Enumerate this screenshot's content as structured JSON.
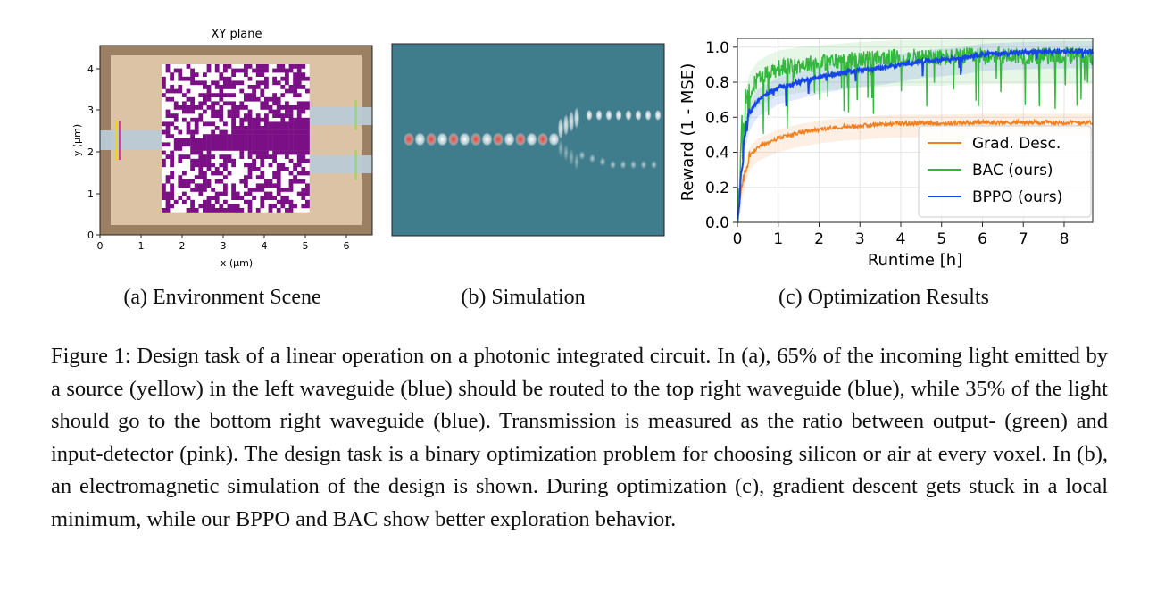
{
  "panel_a": {
    "title": "XY plane",
    "xlabel": "x (μm)",
    "ylabel": "y (μm)",
    "xticks": [
      "0",
      "1",
      "2",
      "3",
      "4",
      "5",
      "6"
    ],
    "yticks": [
      "0",
      "1",
      "2",
      "3",
      "4"
    ],
    "caption": "(a) Environment Scene",
    "colors": {
      "pml": "#9c8063",
      "cladding": "#ddc3a6",
      "waveguide": "#b9cad6",
      "design": "#7b0f86",
      "source": "#f3d21d",
      "input_detector": "#d53aa8",
      "output_detector": "#8bd84a"
    }
  },
  "panel_b": {
    "caption": "(b) Simulation",
    "colors": {
      "background": "#3f7c8c",
      "field_positive": "#d94a45",
      "field_negative": "#f4f4f4"
    }
  },
  "panel_c": {
    "caption": "(c) Optimization Results",
    "chart_data": {
      "type": "line",
      "xlabel": "Runtime [h]",
      "ylabel": "Reward (1 - MSE)",
      "xlim": [
        0,
        8.7
      ],
      "ylim": [
        0,
        1.05
      ],
      "xticks": [
        "0",
        "1",
        "2",
        "3",
        "4",
        "5",
        "6",
        "7",
        "8"
      ],
      "yticks": [
        "0.0",
        "0.2",
        "0.4",
        "0.6",
        "0.8",
        "1.0"
      ],
      "grid": true,
      "legend_position": "lower-right",
      "series": [
        {
          "name": "Grad. Desc.",
          "color": "#f07f1e",
          "x": [
            0,
            0.1,
            0.2,
            0.3,
            0.5,
            0.8,
            1,
            1.5,
            2,
            2.5,
            3,
            3.5,
            4,
            5,
            6,
            7,
            8,
            8.6
          ],
          "y": [
            0,
            0.18,
            0.3,
            0.38,
            0.43,
            0.46,
            0.48,
            0.51,
            0.53,
            0.545,
            0.55,
            0.56,
            0.565,
            0.565,
            0.57,
            0.57,
            0.57,
            0.57
          ]
        },
        {
          "name": "BAC (ours)",
          "color": "#33b83d",
          "x": [
            0,
            0.05,
            0.1,
            0.2,
            0.3,
            0.5,
            0.8,
            1,
            1.5,
            2,
            3,
            4,
            5,
            6,
            7,
            8,
            8.6
          ],
          "y": [
            0,
            0.2,
            0.45,
            0.65,
            0.75,
            0.82,
            0.86,
            0.88,
            0.9,
            0.91,
            0.93,
            0.94,
            0.94,
            0.95,
            0.95,
            0.95,
            0.95
          ]
        },
        {
          "name": "BPPO (ours)",
          "color": "#1646e6",
          "x": [
            0,
            0.05,
            0.1,
            0.2,
            0.3,
            0.5,
            0.8,
            1,
            1.5,
            2,
            2.5,
            3,
            3.5,
            4,
            4.5,
            5,
            5.5,
            6,
            7,
            8,
            8.6
          ],
          "y": [
            0,
            0.12,
            0.3,
            0.52,
            0.62,
            0.7,
            0.74,
            0.77,
            0.8,
            0.83,
            0.85,
            0.87,
            0.88,
            0.9,
            0.92,
            0.93,
            0.94,
            0.96,
            0.97,
            0.975,
            0.975
          ]
        }
      ]
    }
  },
  "caption": {
    "text": "Figure 1: Design task of a linear operation on a photonic integrated circuit. In (a), 65% of the incoming light emitted by a source (yellow) in the left waveguide (blue) should be routed to the top right waveguide (blue), while 35% of the light should go to the bottom right waveguide (blue). Transmission is measured as the ratio between output- (green) and input-detector (pink). The design task is a binary optimization problem for choosing silicon or air at every voxel. In (b), an electromagnetic simulation of the design is shown. During optimization (c), gradient descent gets stuck in a local minimum, while our BPPO and BAC show better exploration behavior."
  }
}
